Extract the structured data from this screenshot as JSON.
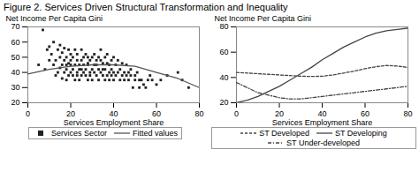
{
  "chart_data": [
    {
      "type": "scatter",
      "title": "Figure 2. Services Driven Structural Transformation and Inequality",
      "xlabel": "Services Employment Share",
      "ylabel": "Net Income Per Capita Gini",
      "xlim": [
        0,
        80
      ],
      "ylim": [
        20,
        70
      ],
      "xticks": [
        0,
        20,
        40,
        60,
        80
      ],
      "yticks": [
        20,
        30,
        40,
        50,
        60,
        70
      ],
      "legend": "bottom",
      "series": [
        {
          "name": "Services Sector",
          "type": "scatter",
          "marker": "square",
          "color": "#222222",
          "x": [
            5,
            7,
            8,
            9,
            10,
            10,
            11,
            12,
            12,
            13,
            13,
            14,
            14,
            15,
            15,
            15,
            16,
            16,
            16,
            17,
            17,
            17,
            18,
            18,
            18,
            18,
            19,
            19,
            19,
            20,
            20,
            20,
            20,
            21,
            21,
            21,
            22,
            22,
            22,
            23,
            23,
            23,
            23,
            24,
            24,
            24,
            25,
            25,
            25,
            25,
            26,
            26,
            26,
            27,
            27,
            27,
            28,
            28,
            28,
            28,
            29,
            29,
            29,
            30,
            30,
            30,
            31,
            31,
            31,
            32,
            32,
            32,
            33,
            33,
            33,
            34,
            34,
            34,
            35,
            35,
            35,
            36,
            36,
            36,
            37,
            37,
            37,
            38,
            38,
            38,
            39,
            39,
            39,
            40,
            40,
            40,
            41,
            41,
            42,
            42,
            43,
            43,
            44,
            44,
            45,
            45,
            46,
            46,
            47,
            47,
            48,
            48,
            49,
            50,
            50,
            51,
            52,
            52,
            53,
            54,
            55,
            56,
            57,
            58,
            60,
            62,
            65,
            70,
            72,
            75
          ],
          "values": [
            45,
            68,
            42,
            55,
            48,
            57,
            52,
            45,
            60,
            38,
            48,
            55,
            40,
            43,
            58,
            50,
            36,
            45,
            53,
            40,
            48,
            56,
            42,
            35,
            50,
            45,
            38,
            55,
            46,
            40,
            52,
            45,
            48,
            38,
            42,
            50,
            35,
            45,
            55,
            40,
            48,
            38,
            52,
            45,
            35,
            42,
            38,
            48,
            55,
            42,
            40,
            50,
            45,
            38,
            52,
            42,
            46,
            35,
            50,
            45,
            40,
            38,
            48,
            42,
            35,
            50,
            40,
            45,
            52,
            38,
            45,
            48,
            42,
            35,
            50,
            40,
            48,
            55,
            38,
            42,
            46,
            35,
            50,
            42,
            38,
            46,
            52,
            40,
            45,
            35,
            42,
            48,
            38,
            40,
            35,
            50,
            38,
            45,
            40,
            48,
            35,
            42,
            38,
            46,
            40,
            35,
            38,
            45,
            40,
            35,
            38,
            42,
            30,
            35,
            38,
            40,
            35,
            30,
            35,
            32,
            30,
            35,
            38,
            35,
            32,
            35,
            38,
            40,
            35,
            30
          ]
        },
        {
          "name": "Fitted values",
          "type": "line",
          "line_style": "solid",
          "color": "#555555",
          "x": [
            0,
            10,
            20,
            30,
            40,
            50,
            60,
            70,
            80
          ],
          "values": [
            39,
            42,
            44,
            45,
            45,
            44,
            40,
            36,
            30
          ]
        }
      ]
    },
    {
      "type": "line",
      "xlabel": "Services Employment Share",
      "ylabel": "Net Income Per Capita Gini",
      "xlim": [
        0,
        80
      ],
      "ylim": [
        20,
        80
      ],
      "xticks": [
        0,
        20,
        40,
        60,
        80
      ],
      "yticks": [
        20,
        40,
        60,
        80
      ],
      "legend": "bottom",
      "x": [
        0,
        5,
        10,
        15,
        20,
        25,
        30,
        35,
        40,
        45,
        50,
        55,
        60,
        65,
        70,
        75,
        80
      ],
      "series": [
        {
          "name": "ST Developed",
          "line_style": "dashed",
          "color": "#444444",
          "values": [
            44,
            43.5,
            43,
            42.5,
            42,
            41.5,
            41,
            40.8,
            41,
            42,
            43.5,
            45,
            47,
            48.5,
            49.5,
            49,
            48
          ]
        },
        {
          "name": "ST Developing",
          "line_style": "solid",
          "color": "#444444",
          "values": [
            20,
            22,
            25,
            29,
            33,
            38,
            43,
            48,
            54,
            59,
            64,
            68,
            72,
            75,
            77,
            78,
            79
          ]
        },
        {
          "name": "ST Under-developed",
          "line_style": "dashdot",
          "color": "#444444",
          "values": [
            36,
            32,
            28,
            26,
            24,
            23,
            23,
            24,
            25,
            26,
            27,
            28,
            29,
            30,
            31,
            32,
            33
          ]
        }
      ]
    }
  ]
}
